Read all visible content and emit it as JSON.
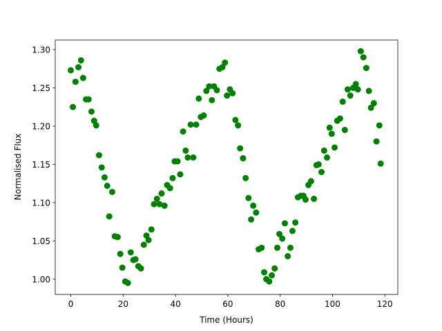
{
  "chart_data": {
    "type": "scatter",
    "x_label": "Time (Hours)",
    "y_label": "Normalised Flux",
    "color": "#008000",
    "xlim": [
      -5.95,
      124.95
    ],
    "ylim": [
      0.98,
      1.3126
    ],
    "xticks": [
      0,
      20,
      40,
      60,
      80,
      100,
      120
    ],
    "yticks": [
      {
        "value": 1.0,
        "label": "1.00"
      },
      1.05,
      {
        "value": 1.1,
        "label": "1.10"
      },
      1.15,
      {
        "value": 1.2,
        "label": "1.20"
      },
      1.25,
      {
        "value": 1.3,
        "label": "1.30"
      }
    ],
    "x": [
      0,
      0.8,
      1.8,
      2.9,
      3.9,
      4.7,
      5.8,
      6.8,
      7.9,
      8.9,
      9.7,
      10.8,
      11.8,
      12.9,
      13.9,
      14.7,
      15.8,
      16.8,
      17.9,
      18.9,
      19.7,
      20.8,
      21.8,
      22.9,
      23.9,
      24.7,
      25.8,
      26.8,
      27.9,
      28.9,
      29.7,
      30.8,
      31.8,
      32.9,
      33.9,
      34.7,
      35.8,
      36.8,
      37.9,
      38.9,
      39.7,
      40.8,
      41.8,
      42.9,
      43.9,
      44.7,
      45.8,
      46.8,
      47.9,
      48.9,
      49.7,
      50.8,
      51.8,
      52.9,
      53.9,
      54.7,
      55.8,
      56.8,
      57.9,
      58.9,
      59.7,
      60.8,
      61.8,
      62.9,
      63.9,
      64.7,
      65.8,
      66.8,
      67.9,
      68.9,
      69.7,
      70.8,
      71.8,
      72.9,
      73.9,
      74.7,
      75.8,
      76.8,
      77.9,
      78.9,
      79.7,
      80.8,
      81.8,
      82.9,
      83.9,
      84.7,
      85.8,
      86.8,
      87.9,
      88.9,
      89.7,
      90.8,
      91.8,
      92.9,
      93.9,
      94.7,
      95.8,
      96.8,
      97.9,
      98.9,
      99.7,
      100.8,
      101.8,
      102.9,
      103.9,
      104.7,
      105.8,
      106.8,
      107.9,
      108.9,
      109.7,
      110.8,
      111.8,
      112.9,
      113.9,
      114.7,
      115.8,
      116.8,
      117.9,
      118.4
    ],
    "values": [
      1.273,
      1.225,
      1.258,
      1.277,
      1.286,
      1.263,
      1.235,
      1.235,
      1.219,
      1.207,
      1.201,
      1.162,
      1.146,
      1.133,
      1.122,
      1.082,
      1.114,
      1.056,
      1.055,
      1.033,
      1.015,
      0.997,
      0.995,
      1.035,
      1.025,
      1.026,
      1.017,
      1.014,
      1.045,
      1.057,
      1.051,
      1.065,
      1.098,
      1.105,
      1.098,
      1.112,
      1.096,
      1.123,
      1.119,
      1.132,
      1.154,
      1.154,
      1.137,
      1.193,
      1.168,
      1.159,
      1.202,
      1.159,
      1.202,
      1.236,
      1.212,
      1.214,
      1.246,
      1.252,
      1.234,
      1.252,
      1.247,
      1.275,
      1.277,
      1.283,
      1.24,
      1.248,
      1.243,
      1.208,
      1.201,
      1.171,
      1.158,
      1.132,
      1.106,
      1.078,
      1.096,
      1.087,
      1.039,
      1.041,
      1.009,
      1.0,
      0.997,
      1.005,
      1.014,
      1.041,
      1.059,
      1.053,
      1.073,
      1.03,
      1.041,
      1.063,
      1.074,
      1.107,
      1.109,
      1.109,
      1.104,
      1.123,
      1.128,
      1.105,
      1.149,
      1.15,
      1.14,
      1.168,
      1.159,
      1.198,
      1.19,
      1.172,
      1.207,
      1.21,
      1.232,
      1.195,
      1.248,
      1.24,
      1.25,
      1.255,
      1.248,
      1.298,
      1.29,
      1.276,
      1.246,
      1.224,
      1.23,
      1.18,
      1.201,
      1.151
    ]
  }
}
